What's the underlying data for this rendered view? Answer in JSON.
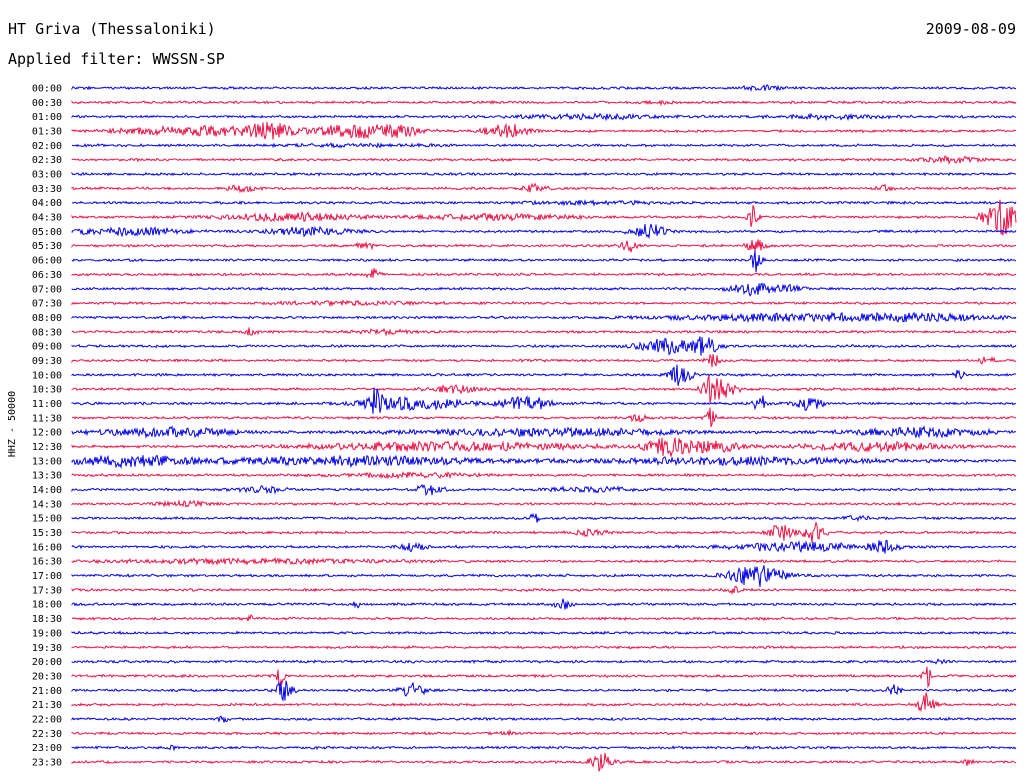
{
  "header": {
    "station": "HT Griva (Thessaloniki)",
    "date": "2009-08-09",
    "filter": "Applied filter: WWSSN-SP"
  },
  "chart_data": {
    "type": "line",
    "title": "HT Griva (Thessaloniki)",
    "subtitle": "Applied filter: WWSSN-SP",
    "ylabel": "HHZ - 50000",
    "xlabel": "",
    "grid": false,
    "colors": {
      "even_row": "#0000ee",
      "odd_row": "#ee1144"
    },
    "rows": [
      {
        "label": "00:00",
        "bursts": [
          {
            "t": 0.73,
            "a": 0.4,
            "w": 0.012
          }
        ]
      },
      {
        "label": "00:30",
        "bursts": [
          {
            "t": 0.62,
            "a": 0.2,
            "w": 0.01
          }
        ]
      },
      {
        "label": "01:00",
        "bursts": [
          {
            "t": 0.55,
            "a": 0.3,
            "w": 0.05
          },
          {
            "t": 0.8,
            "a": 0.25,
            "w": 0.04
          }
        ]
      },
      {
        "label": "01:30",
        "bursts": [
          {
            "t": 0.09,
            "a": 0.5,
            "w": 0.03
          },
          {
            "t": 0.15,
            "a": 0.6,
            "w": 0.02
          },
          {
            "t": 0.21,
            "a": 1.2,
            "w": 0.02
          },
          {
            "t": 0.29,
            "a": 1.0,
            "w": 0.02
          },
          {
            "t": 0.34,
            "a": 0.9,
            "w": 0.02
          },
          {
            "t": 0.46,
            "a": 1.0,
            "w": 0.015
          }
        ]
      },
      {
        "label": "02:00",
        "bursts": [
          {
            "t": 0.3,
            "a": 0.15,
            "w": 0.05
          }
        ]
      },
      {
        "label": "02:30",
        "bursts": [
          {
            "t": 0.93,
            "a": 0.4,
            "w": 0.02
          }
        ]
      },
      {
        "label": "03:00",
        "bursts": []
      },
      {
        "label": "03:30",
        "bursts": [
          {
            "t": 0.18,
            "a": 0.4,
            "w": 0.01
          },
          {
            "t": 0.49,
            "a": 0.6,
            "w": 0.008
          },
          {
            "t": 0.86,
            "a": 0.5,
            "w": 0.005
          }
        ]
      },
      {
        "label": "04:00",
        "bursts": [
          {
            "t": 0.55,
            "a": 0.2,
            "w": 0.05
          }
        ]
      },
      {
        "label": "04:30",
        "bursts": [
          {
            "t": 0.23,
            "a": 0.5,
            "w": 0.05
          },
          {
            "t": 0.45,
            "a": 0.4,
            "w": 0.05
          },
          {
            "t": 0.72,
            "a": 1.6,
            "w": 0.004
          },
          {
            "t": 0.985,
            "a": 2.6,
            "w": 0.012
          }
        ]
      },
      {
        "label": "05:00",
        "bursts": [
          {
            "t": 0.06,
            "a": 0.5,
            "w": 0.04
          },
          {
            "t": 0.25,
            "a": 0.6,
            "w": 0.03
          },
          {
            "t": 0.61,
            "a": 1.1,
            "w": 0.012
          }
        ]
      },
      {
        "label": "05:30",
        "bursts": [
          {
            "t": 0.31,
            "a": 0.6,
            "w": 0.006
          },
          {
            "t": 0.59,
            "a": 0.8,
            "w": 0.006
          },
          {
            "t": 0.725,
            "a": 1.3,
            "w": 0.006
          }
        ]
      },
      {
        "label": "06:00",
        "bursts": [
          {
            "t": 0.725,
            "a": 1.8,
            "w": 0.004
          }
        ]
      },
      {
        "label": "06:30",
        "bursts": [
          {
            "t": 0.32,
            "a": 0.8,
            "w": 0.005
          }
        ]
      },
      {
        "label": "07:00",
        "bursts": [
          {
            "t": 0.72,
            "a": 1.0,
            "w": 0.015
          },
          {
            "t": 0.76,
            "a": 0.5,
            "w": 0.01
          }
        ]
      },
      {
        "label": "07:30",
        "bursts": [
          {
            "t": 0.3,
            "a": 0.2,
            "w": 0.05
          }
        ]
      },
      {
        "label": "08:00",
        "bursts": [
          {
            "t": 0.75,
            "a": 0.5,
            "w": 0.08
          },
          {
            "t": 0.9,
            "a": 0.4,
            "w": 0.06
          }
        ]
      },
      {
        "label": "08:30",
        "bursts": [
          {
            "t": 0.19,
            "a": 0.5,
            "w": 0.005
          },
          {
            "t": 0.33,
            "a": 0.3,
            "w": 0.02
          }
        ]
      },
      {
        "label": "09:00",
        "bursts": [
          {
            "t": 0.63,
            "a": 1.0,
            "w": 0.02
          },
          {
            "t": 0.67,
            "a": 1.2,
            "w": 0.01
          }
        ]
      },
      {
        "label": "09:30",
        "bursts": [
          {
            "t": 0.68,
            "a": 1.0,
            "w": 0.005
          },
          {
            "t": 0.97,
            "a": 0.5,
            "w": 0.006
          }
        ]
      },
      {
        "label": "10:00",
        "bursts": [
          {
            "t": 0.645,
            "a": 1.6,
            "w": 0.008
          },
          {
            "t": 0.94,
            "a": 0.6,
            "w": 0.004
          }
        ]
      },
      {
        "label": "10:30",
        "bursts": [
          {
            "t": 0.41,
            "a": 0.5,
            "w": 0.02
          },
          {
            "t": 0.675,
            "a": 1.5,
            "w": 0.006
          },
          {
            "t": 0.69,
            "a": 1.2,
            "w": 0.01
          }
        ]
      },
      {
        "label": "11:00",
        "bursts": [
          {
            "t": 0.32,
            "a": 1.7,
            "w": 0.006
          },
          {
            "t": 0.36,
            "a": 0.8,
            "w": 0.04
          },
          {
            "t": 0.48,
            "a": 1.2,
            "w": 0.015
          },
          {
            "t": 0.73,
            "a": 1.0,
            "w": 0.006
          },
          {
            "t": 0.78,
            "a": 1.0,
            "w": 0.01
          }
        ]
      },
      {
        "label": "11:30",
        "bursts": [
          {
            "t": 0.675,
            "a": 1.5,
            "w": 0.004
          },
          {
            "t": 0.6,
            "a": 0.5,
            "w": 0.006
          }
        ]
      },
      {
        "label": "12:00",
        "bursts": [
          {
            "t": 0.1,
            "a": 0.6,
            "w": 0.05
          },
          {
            "t": 0.5,
            "a": 0.5,
            "w": 0.1
          },
          {
            "t": 0.9,
            "a": 0.6,
            "w": 0.05
          }
        ]
      },
      {
        "label": "12:30",
        "bursts": [
          {
            "t": 0.63,
            "a": 1.3,
            "w": 0.015
          },
          {
            "t": 0.68,
            "a": 0.8,
            "w": 0.02
          },
          {
            "t": 0.4,
            "a": 0.6,
            "w": 0.1
          },
          {
            "t": 0.85,
            "a": 0.6,
            "w": 0.05
          }
        ]
      },
      {
        "label": "13:00",
        "bursts": [
          {
            "t": 0.06,
            "a": 0.7,
            "w": 0.05
          },
          {
            "t": 0.3,
            "a": 0.6,
            "w": 0.1
          },
          {
            "t": 0.7,
            "a": 0.5,
            "w": 0.1
          }
        ]
      },
      {
        "label": "13:30",
        "bursts": [
          {
            "t": 0.36,
            "a": 0.3,
            "w": 0.05
          }
        ]
      },
      {
        "label": "14:00",
        "bursts": [
          {
            "t": 0.38,
            "a": 0.8,
            "w": 0.01
          },
          {
            "t": 0.2,
            "a": 0.4,
            "w": 0.02
          },
          {
            "t": 0.55,
            "a": 0.3,
            "w": 0.03
          }
        ]
      },
      {
        "label": "14:30",
        "bursts": [
          {
            "t": 0.12,
            "a": 0.3,
            "w": 0.02
          }
        ]
      },
      {
        "label": "15:00",
        "bursts": [
          {
            "t": 0.49,
            "a": 0.6,
            "w": 0.004
          },
          {
            "t": 0.83,
            "a": 0.4,
            "w": 0.01
          }
        ]
      },
      {
        "label": "15:30",
        "bursts": [
          {
            "t": 0.75,
            "a": 1.2,
            "w": 0.008
          },
          {
            "t": 0.785,
            "a": 1.3,
            "w": 0.008
          },
          {
            "t": 0.55,
            "a": 0.5,
            "w": 0.01
          }
        ]
      },
      {
        "label": "16:00",
        "bursts": [
          {
            "t": 0.36,
            "a": 0.5,
            "w": 0.01
          },
          {
            "t": 0.77,
            "a": 0.6,
            "w": 0.05
          },
          {
            "t": 0.86,
            "a": 0.8,
            "w": 0.01
          }
        ]
      },
      {
        "label": "16:30",
        "bursts": [
          {
            "t": 0.2,
            "a": 0.3,
            "w": 0.1
          }
        ]
      },
      {
        "label": "17:00",
        "bursts": [
          {
            "t": 0.725,
            "a": 1.5,
            "w": 0.02
          }
        ]
      },
      {
        "label": "17:30",
        "bursts": [
          {
            "t": 0.7,
            "a": 0.6,
            "w": 0.004
          }
        ]
      },
      {
        "label": "18:00",
        "bursts": [
          {
            "t": 0.52,
            "a": 0.8,
            "w": 0.006
          },
          {
            "t": 0.3,
            "a": 0.5,
            "w": 0.004
          }
        ]
      },
      {
        "label": "18:30",
        "bursts": [
          {
            "t": 0.19,
            "a": 0.4,
            "w": 0.004
          }
        ]
      },
      {
        "label": "19:00",
        "bursts": []
      },
      {
        "label": "19:30",
        "bursts": []
      },
      {
        "label": "20:00",
        "bursts": [
          {
            "t": 0.92,
            "a": 0.3,
            "w": 0.004
          }
        ]
      },
      {
        "label": "20:30",
        "bursts": [
          {
            "t": 0.22,
            "a": 1.4,
            "w": 0.003
          },
          {
            "t": 0.905,
            "a": 1.8,
            "w": 0.003
          }
        ]
      },
      {
        "label": "21:00",
        "bursts": [
          {
            "t": 0.225,
            "a": 1.5,
            "w": 0.006
          },
          {
            "t": 0.36,
            "a": 1.0,
            "w": 0.01
          },
          {
            "t": 0.87,
            "a": 0.8,
            "w": 0.005
          }
        ]
      },
      {
        "label": "21:30",
        "bursts": [
          {
            "t": 0.905,
            "a": 1.6,
            "w": 0.006
          }
        ]
      },
      {
        "label": "22:00",
        "bursts": [
          {
            "t": 0.16,
            "a": 0.5,
            "w": 0.004
          }
        ]
      },
      {
        "label": "22:30",
        "bursts": [
          {
            "t": 0.46,
            "a": 0.3,
            "w": 0.004
          }
        ]
      },
      {
        "label": "23:00",
        "bursts": [
          {
            "t": 0.105,
            "a": 1.0,
            "w": 0.002
          }
        ]
      },
      {
        "label": "23:30",
        "bursts": [
          {
            "t": 0.56,
            "a": 1.4,
            "w": 0.008
          },
          {
            "t": 0.95,
            "a": 0.4,
            "w": 0.004
          }
        ]
      }
    ]
  }
}
